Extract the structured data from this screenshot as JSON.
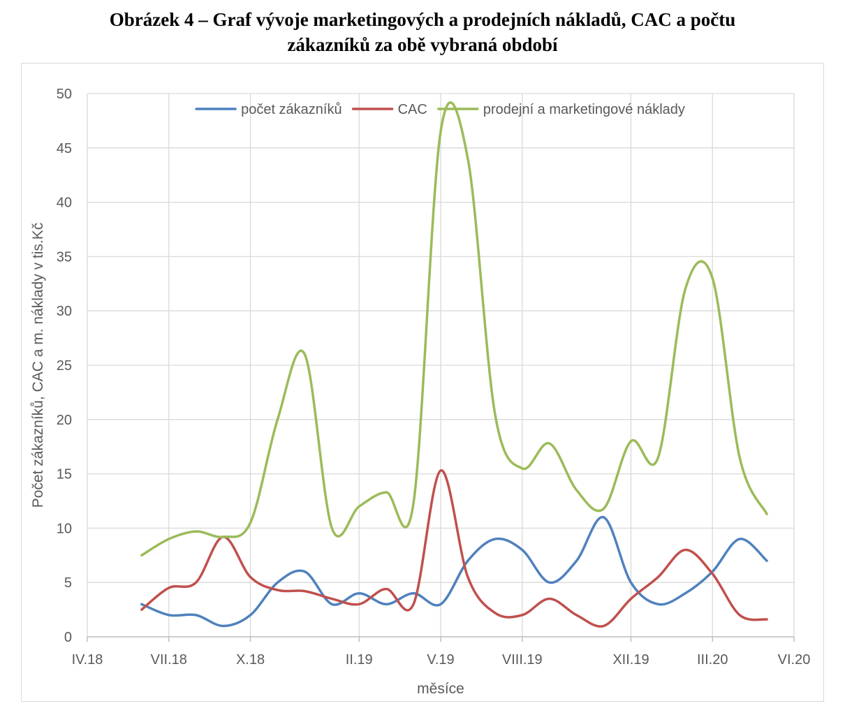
{
  "figure": {
    "title_line1": "Obrázek 4 – Graf vývoje marketingových a prodejních nákladů, CAC a počtu",
    "title_line2": "zákazníků za obě vybraná období"
  },
  "chart_data": {
    "type": "line",
    "xlabel": "měsíce",
    "ylabel": "Počet zákazníků, CAC a m. náklady v tis.Kč",
    "ylim": [
      0,
      50
    ],
    "y_ticks": [
      0,
      5,
      10,
      15,
      20,
      25,
      30,
      35,
      40,
      45,
      50
    ],
    "x_range": [
      "2018-04",
      "2020-06"
    ],
    "x_ticks": [
      "IV.18",
      "VII.18",
      "X.18",
      "II.19",
      "V.19",
      "VIII.19",
      "XII.19",
      "III.20",
      "VI.20"
    ],
    "grid": true,
    "legend_position": "top",
    "smooth": true,
    "series": [
      {
        "name": "počet zákazníků",
        "color": "#4f81bd",
        "points": [
          [
            "2018-06",
            3
          ],
          [
            "2018-07",
            2
          ],
          [
            "2018-08",
            2
          ],
          [
            "2018-09",
            1
          ],
          [
            "2018-10",
            2
          ],
          [
            "2018-11",
            5
          ],
          [
            "2018-12",
            6
          ],
          [
            "2019-01",
            3
          ],
          [
            "2019-02",
            4
          ],
          [
            "2019-03",
            3
          ],
          [
            "2019-04",
            4
          ],
          [
            "2019-05",
            3
          ],
          [
            "2019-06",
            7
          ],
          [
            "2019-07",
            9
          ],
          [
            "2019-08",
            8
          ],
          [
            "2019-09",
            5
          ],
          [
            "2019-10",
            7
          ],
          [
            "2019-11",
            11
          ],
          [
            "2019-12",
            5
          ],
          [
            "2020-01",
            3
          ],
          [
            "2020-02",
            4
          ],
          [
            "2020-03",
            6
          ],
          [
            "2020-04",
            9
          ],
          [
            "2020-05",
            7
          ]
        ]
      },
      {
        "name": "CAC",
        "color": "#c0504d",
        "points": [
          [
            "2018-06",
            2.5
          ],
          [
            "2018-07",
            4.5
          ],
          [
            "2018-08",
            5
          ],
          [
            "2018-09",
            9.2
          ],
          [
            "2018-10",
            5.5
          ],
          [
            "2018-11",
            4.3
          ],
          [
            "2018-12",
            4.2
          ],
          [
            "2019-01",
            3.5
          ],
          [
            "2019-02",
            3
          ],
          [
            "2019-03",
            4.4
          ],
          [
            "2019-04",
            3
          ],
          [
            "2019-05",
            15.3
          ],
          [
            "2019-06",
            5.5
          ],
          [
            "2019-07",
            2.2
          ],
          [
            "2019-08",
            2
          ],
          [
            "2019-09",
            3.5
          ],
          [
            "2019-10",
            2
          ],
          [
            "2019-11",
            1
          ],
          [
            "2019-12",
            3.5
          ],
          [
            "2020-01",
            5.5
          ],
          [
            "2020-02",
            8
          ],
          [
            "2020-03",
            5.8
          ],
          [
            "2020-04",
            2
          ],
          [
            "2020-05",
            1.6
          ]
        ]
      },
      {
        "name": "prodejní a marketingové náklady",
        "color": "#9bbb59",
        "points": [
          [
            "2018-06",
            7.5
          ],
          [
            "2018-07",
            9
          ],
          [
            "2018-08",
            9.7
          ],
          [
            "2018-09",
            9.2
          ],
          [
            "2018-10",
            10.5
          ],
          [
            "2018-11",
            20
          ],
          [
            "2018-12",
            26
          ],
          [
            "2019-01",
            10
          ],
          [
            "2019-02",
            12
          ],
          [
            "2019-03",
            13.3
          ],
          [
            "2019-04",
            12.3
          ],
          [
            "2019-05",
            46.5
          ],
          [
            "2019-06",
            44
          ],
          [
            "2019-07",
            20.5
          ],
          [
            "2019-08",
            15.5
          ],
          [
            "2019-09",
            17.8
          ],
          [
            "2019-10",
            13.5
          ],
          [
            "2019-11",
            11.8
          ],
          [
            "2019-12",
            18
          ],
          [
            "2020-01",
            16.5
          ],
          [
            "2020-02",
            32
          ],
          [
            "2020-03",
            33
          ],
          [
            "2020-04",
            16.5
          ],
          [
            "2020-05",
            11.3
          ]
        ]
      }
    ]
  }
}
